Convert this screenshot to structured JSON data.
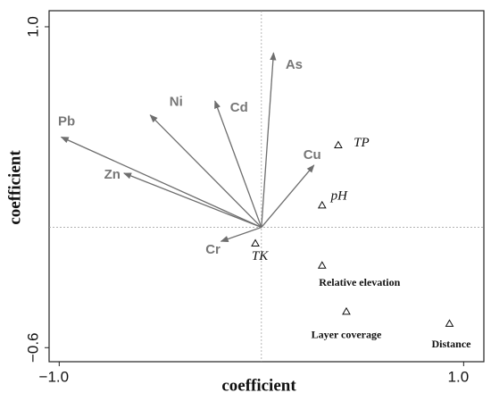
{
  "chart_data": {
    "type": "biplot",
    "x_label": "coefficient",
    "y_label": "coefficient",
    "xlim": [
      -1.05,
      1.1
    ],
    "ylim": [
      -0.67,
      1.08
    ],
    "xticks": [
      {
        "value": -1.0,
        "label": "−1.0"
      },
      {
        "value": 1.0,
        "label": "1.0"
      }
    ],
    "yticks": [
      {
        "value": -0.6,
        "label": "−0.6"
      },
      {
        "value": 1.0,
        "label": "1.0"
      }
    ],
    "arrows": {
      "color": "#6e6e6e",
      "labels": [
        "As",
        "Cd",
        "Ni",
        "Pb",
        "Zn",
        "Cr",
        "Cu"
      ],
      "x": [
        0.06,
        -0.23,
        -0.55,
        -0.99,
        -0.68,
        -0.2,
        0.26
      ],
      "y": [
        0.87,
        0.63,
        0.56,
        0.45,
        0.27,
        -0.07,
        0.31
      ]
    },
    "points": {
      "color": "#111111",
      "labels": [
        "TP",
        "pH",
        "TK",
        "Relative elevation",
        "Layer coverage",
        "Distance"
      ],
      "x": [
        0.38,
        0.3,
        -0.03,
        0.3,
        0.42,
        0.93
      ],
      "y": [
        0.41,
        0.11,
        -0.08,
        -0.19,
        -0.42,
        -0.48
      ]
    }
  }
}
